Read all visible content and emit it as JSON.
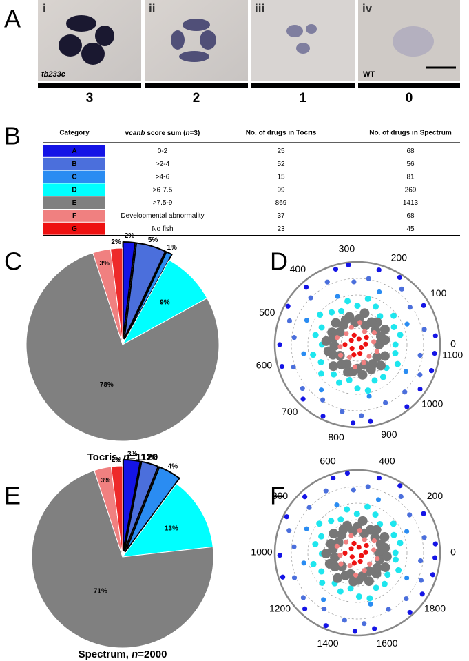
{
  "panels": {
    "a": "A",
    "b": "B",
    "c": "C",
    "d": "D",
    "e": "E",
    "f": "F"
  },
  "panel_a": {
    "numerals": [
      "i",
      "ii",
      "iii",
      "iv"
    ],
    "strain": "tb233c",
    "control": "WT",
    "scores": [
      3,
      2,
      1,
      0
    ]
  },
  "table": {
    "columns": [
      "Category",
      [
        "v",
        "canb",
        " score sum (",
        "n",
        "=3)"
      ],
      "No. of drugs in Tocris",
      "No. of drugs in Spectrum"
    ],
    "rows": [
      [
        "A",
        "0-2",
        25,
        68
      ],
      [
        "B",
        ">2-4",
        52,
        56
      ],
      [
        "C",
        ">4-6",
        15,
        81
      ],
      [
        "D",
        ">6-7.5",
        99,
        269
      ],
      [
        "E",
        ">7.5-9",
        869,
        1413
      ],
      [
        "F",
        "Developmental abnormality",
        37,
        68
      ],
      [
        "G",
        "No fish",
        23,
        45
      ]
    ],
    "row_colors": [
      "#1414e6",
      "#4b6fdc",
      "#2a8cf2",
      "#00ffff",
      "#808080",
      "#f08080",
      "#ee1111"
    ]
  },
  "chart_data": [
    {
      "type": "pie",
      "caption": [
        "Tocris, ",
        "n",
        "=1120"
      ],
      "values": [
        2,
        5,
        1,
        9,
        78,
        3,
        2
      ],
      "value_labels": [
        "2%",
        "5%",
        "1%",
        "9%",
        "78%",
        "3%",
        "2%"
      ],
      "colors": [
        "#1414e6",
        "#4b6fdc",
        "#2a8cf2",
        "#00ffff",
        "#808080",
        "#f08080",
        "#ee2a2a"
      ],
      "explode": [
        true,
        true,
        true,
        false,
        false,
        false,
        false
      ]
    },
    {
      "type": "polar_scatter",
      "thetalim": [
        0,
        1120
      ],
      "thetaticks": [
        0,
        100,
        200,
        300,
        400,
        500,
        600,
        700,
        800,
        900,
        1000,
        1100
      ],
      "rlim": [
        0,
        10
      ],
      "rticks": [
        2,
        4,
        6,
        8
      ],
      "series": [
        {
          "color": "#1414e6",
          "x": [
            20,
            95,
            180,
            230,
            300,
            330,
            410,
            470,
            560,
            610,
            700,
            760,
            830,
            870,
            960,
            1010,
            1060,
            1100
          ],
          "values": [
            9.5,
            9.3,
            9.6,
            9.4,
            9.7,
            9.5,
            9.3,
            9.6,
            9.4,
            9.5,
            9.3,
            9.6,
            9.5,
            9.4,
            9.6,
            9.3,
            9.5,
            9.4
          ]
        },
        {
          "color": "#4b6fdc",
          "x": [
            40,
            110,
            160,
            250,
            290,
            360,
            420,
            500,
            540,
            620,
            680,
            740,
            800,
            850,
            920,
            980,
            1040,
            1090
          ],
          "values": [
            8.3,
            7.8,
            8.6,
            8.1,
            7.6,
            8.4,
            8.0,
            8.7,
            7.7,
            8.2,
            8.5,
            7.9,
            8.3,
            8.6,
            7.8,
            8.1,
            8.4,
            7.7
          ]
        },
        {
          "color": "#2a8cf2",
          "x": [
            70,
            210,
            350,
            480,
            590,
            720,
            880,
            1030
          ],
          "values": [
            6.5,
            6.9,
            6.3,
            6.8,
            6.6,
            7.0,
            6.4,
            6.7
          ]
        },
        {
          "color": "#1ee6ee",
          "x": [
            0,
            40,
            80,
            120,
            160,
            200,
            240,
            280,
            320,
            360,
            400,
            440,
            480,
            520,
            560,
            600,
            640,
            680,
            720,
            760,
            800,
            840,
            880,
            920,
            960,
            1000,
            1040,
            1080
          ],
          "values": [
            4.6,
            5.3,
            4.9,
            5.6,
            4.4,
            5.1,
            5.7,
            4.7,
            5.4,
            4.5,
            5.0,
            5.8,
            4.8,
            5.2,
            4.3,
            5.5,
            4.9,
            5.6,
            4.6,
            5.1,
            4.4,
            5.3,
            5.7,
            4.8,
            5.0,
            4.5,
            5.4,
            4.7
          ]
        },
        {
          "color": "#777777",
          "x": [
            0,
            30,
            60,
            90,
            120,
            150,
            180,
            210,
            240,
            270,
            300,
            330,
            360,
            390,
            420,
            450,
            480,
            510,
            540,
            570,
            600,
            630,
            660,
            690,
            720,
            750,
            780,
            810,
            840,
            870,
            900,
            930,
            960,
            990,
            1020,
            1050
          ],
          "values": [
            2.6,
            3.4,
            3.0,
            3.8,
            2.8,
            3.6,
            3.2,
            2.5,
            3.9,
            3.1,
            2.7,
            3.5,
            3.3,
            2.9,
            3.7,
            2.6,
            3.4,
            3.0,
            3.8,
            2.8,
            3.6,
            3.2,
            2.5,
            3.9,
            3.1,
            2.7,
            3.5,
            3.3,
            2.9,
            3.7,
            2.6,
            3.4,
            3.0,
            3.8,
            2.8,
            3.6
          ]
        },
        {
          "color": "#f08080",
          "x": [
            30,
            110,
            190,
            260,
            340,
            420,
            500,
            580,
            660,
            740,
            820,
            900,
            980,
            1060
          ],
          "values": [
            2.0,
            2.5,
            1.8,
            2.7,
            2.2,
            1.9,
            2.6,
            2.1,
            2.4,
            1.8,
            2.7,
            2.3,
            2.0,
            2.5
          ]
        },
        {
          "color": "#ee1111",
          "x": [
            10,
            120,
            230,
            340,
            450,
            560,
            670,
            780,
            890,
            1000
          ],
          "values": [
            1.0,
            1.4,
            0.7,
            1.2,
            0.9,
            1.5,
            0.8,
            1.3,
            1.1,
            0.6
          ]
        }
      ]
    },
    {
      "type": "pie",
      "caption": [
        "Spectrum, ",
        "n",
        "=2000"
      ],
      "values": [
        3,
        3,
        4,
        13,
        71,
        3,
        2
      ],
      "value_labels": [
        "3%",
        "3%",
        "4%",
        "13%",
        "71%",
        "3%",
        "2%"
      ],
      "colors": [
        "#1414e6",
        "#4b6fdc",
        "#2a8cf2",
        "#00ffff",
        "#808080",
        "#f08080",
        "#ee2a2a"
      ],
      "explode": [
        true,
        true,
        true,
        false,
        false,
        false,
        false
      ]
    },
    {
      "type": "polar_scatter",
      "thetalim": [
        0,
        2000
      ],
      "thetaticks": [
        0,
        200,
        400,
        600,
        800,
        1000,
        1200,
        1400,
        1600,
        1800
      ],
      "rlim": [
        0,
        10
      ],
      "rticks": [
        2,
        4,
        6,
        8
      ],
      "series": [
        {
          "color": "#1414e6",
          "x": [
            36,
            170,
            320,
            410,
            540,
            600,
            740,
            850,
            1010,
            1100,
            1260,
            1370,
            1490,
            1570,
            1730,
            1820,
            1910,
            1980
          ],
          "values": [
            9.5,
            9.3,
            9.6,
            9.4,
            9.7,
            9.5,
            9.3,
            9.6,
            9.4,
            9.5,
            9.3,
            9.6,
            9.5,
            9.4,
            9.6,
            9.3,
            9.5,
            9.4
          ]
        },
        {
          "color": "#4b6fdc",
          "x": [
            72,
            200,
            290,
            450,
            520,
            650,
            760,
            900,
            970,
            1120,
            1220,
            1330,
            1440,
            1530,
            1660,
            1760,
            1870,
            1960
          ],
          "values": [
            8.3,
            7.8,
            8.6,
            8.1,
            7.6,
            8.4,
            8.0,
            8.7,
            7.7,
            8.2,
            8.5,
            7.9,
            8.3,
            8.6,
            7.8,
            8.1,
            8.4,
            7.7
          ]
        },
        {
          "color": "#2a8cf2",
          "x": [
            130,
            380,
            630,
            860,
            1060,
            1300,
            1580,
            1850
          ],
          "values": [
            6.5,
            6.9,
            6.3,
            6.8,
            6.6,
            7.0,
            6.4,
            6.7
          ]
        },
        {
          "color": "#1ee6ee",
          "x": [
            0,
            72,
            144,
            216,
            288,
            360,
            432,
            504,
            576,
            648,
            720,
            792,
            864,
            936,
            1008,
            1080,
            1152,
            1224,
            1296,
            1368,
            1440,
            1512,
            1584,
            1656,
            1728,
            1800,
            1872,
            1944
          ],
          "values": [
            4.6,
            5.3,
            4.9,
            5.6,
            4.4,
            5.1,
            5.7,
            4.7,
            5.4,
            4.5,
            5.0,
            5.8,
            4.8,
            5.2,
            4.3,
            5.5,
            4.9,
            5.6,
            4.6,
            5.1,
            4.4,
            5.3,
            5.7,
            4.8,
            5.0,
            4.5,
            5.4,
            4.7
          ]
        },
        {
          "color": "#777777",
          "x": [
            0,
            56,
            112,
            168,
            224,
            280,
            336,
            392,
            448,
            504,
            560,
            616,
            672,
            728,
            784,
            840,
            896,
            952,
            1008,
            1064,
            1120,
            1176,
            1232,
            1288,
            1344,
            1400,
            1456,
            1512,
            1568,
            1624,
            1680,
            1736,
            1792,
            1848,
            1904,
            1960
          ],
          "values": [
            2.6,
            3.4,
            3.0,
            3.8,
            2.8,
            3.6,
            3.2,
            2.5,
            3.9,
            3.1,
            2.7,
            3.5,
            3.3,
            2.9,
            3.7,
            2.6,
            3.4,
            3.0,
            3.8,
            2.8,
            3.6,
            3.2,
            2.5,
            3.9,
            3.1,
            2.7,
            3.5,
            3.3,
            2.9,
            3.7,
            2.6,
            3.4,
            3.0,
            3.8,
            2.8,
            3.6
          ]
        },
        {
          "color": "#f08080",
          "x": [
            54,
            198,
            342,
            468,
            612,
            756,
            900,
            1044,
            1188,
            1332,
            1476,
            1620,
            1764,
            1908
          ],
          "values": [
            2.0,
            2.5,
            1.8,
            2.7,
            2.2,
            1.9,
            2.6,
            2.1,
            2.4,
            1.8,
            2.7,
            2.3,
            2.0,
            2.5
          ]
        },
        {
          "color": "#ee1111",
          "x": [
            18,
            216,
            414,
            612,
            810,
            1008,
            1206,
            1404,
            1602,
            1800
          ],
          "values": [
            1.0,
            1.4,
            0.7,
            1.2,
            0.9,
            1.5,
            0.8,
            1.3,
            1.1,
            0.6
          ]
        }
      ]
    }
  ]
}
